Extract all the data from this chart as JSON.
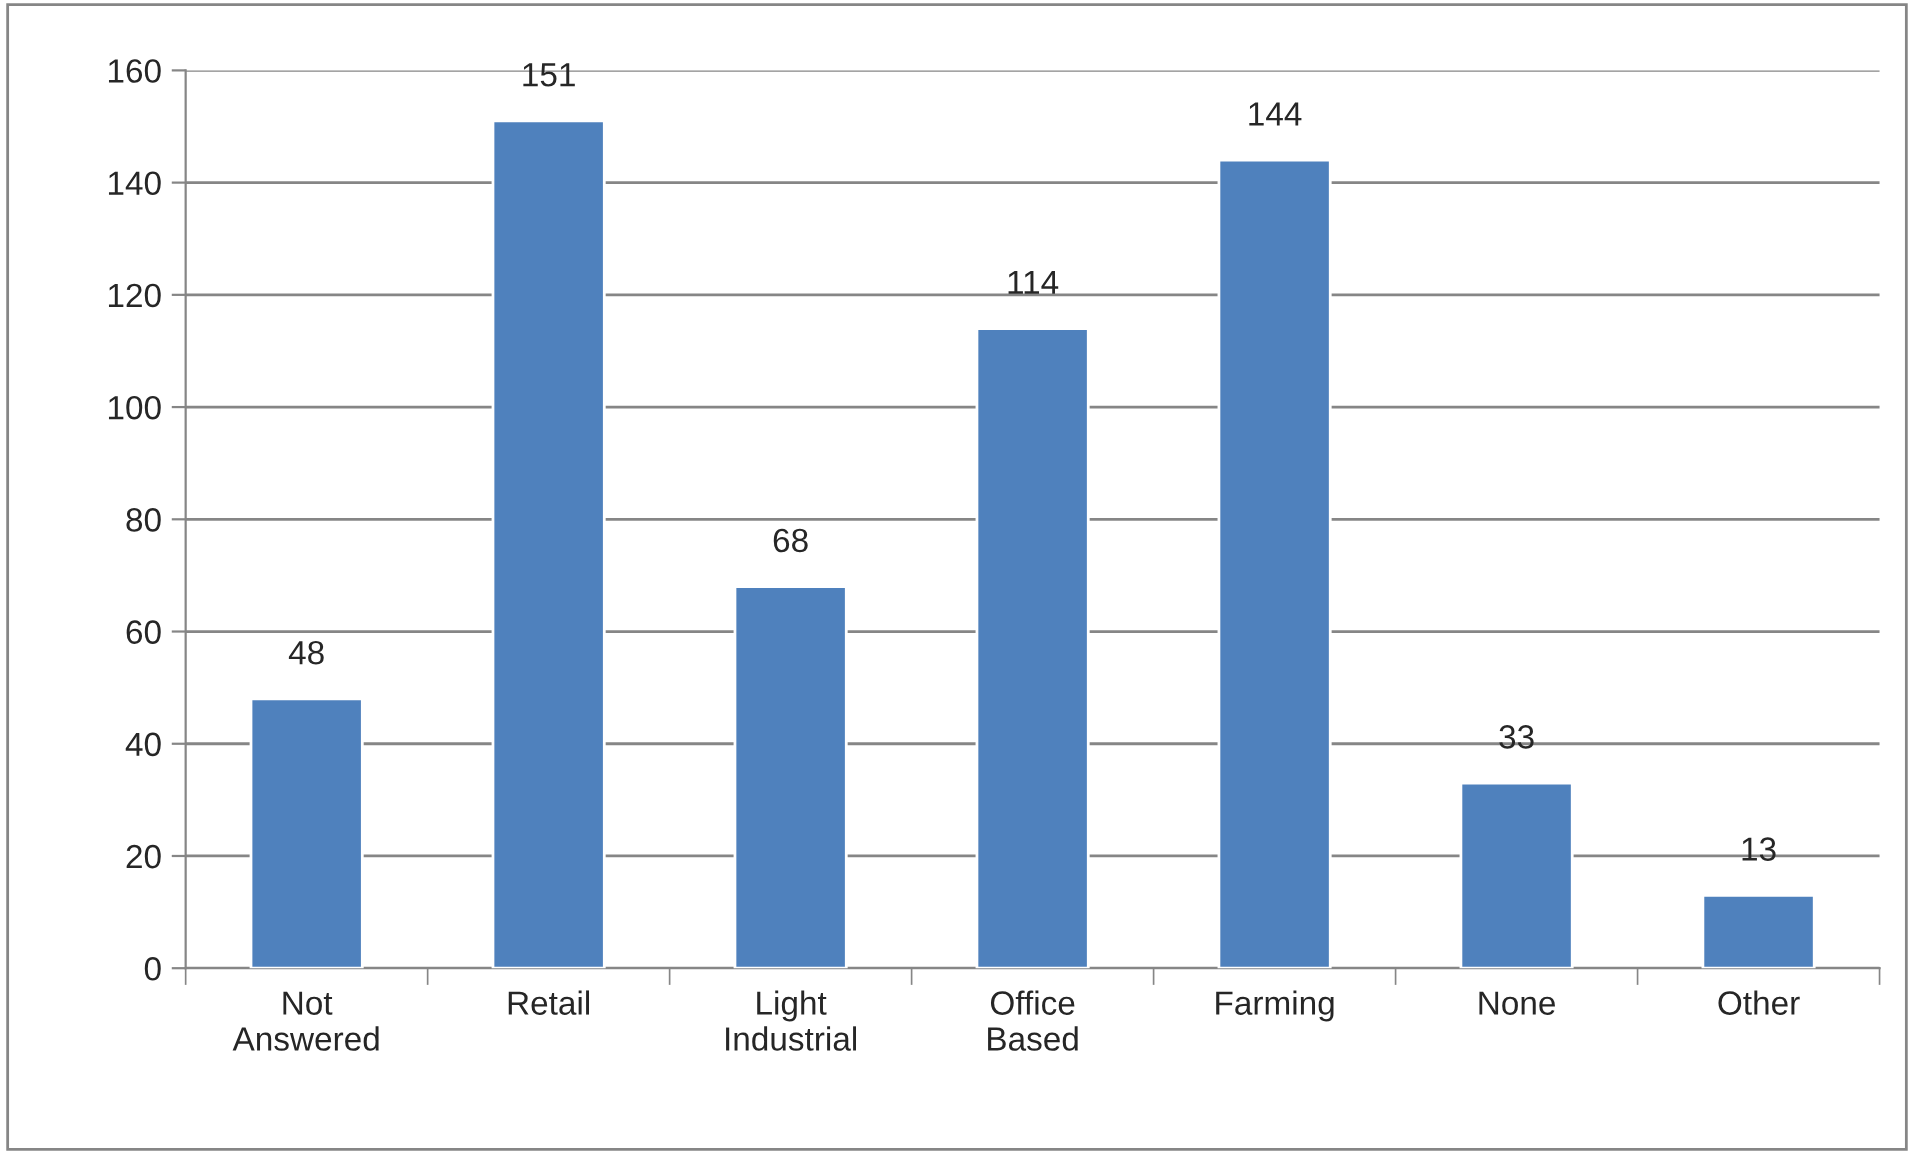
{
  "chart_data": {
    "type": "bar",
    "categories": [
      "Not Answered",
      "Retail",
      "Light Industrial",
      "Office Based",
      "Farming",
      "None",
      "Other"
    ],
    "values": [
      48,
      151,
      68,
      114,
      144,
      33,
      13
    ],
    "color": "#4f81bd",
    "ylim": [
      0,
      160
    ],
    "yticks": [
      0,
      20,
      40,
      60,
      80,
      100,
      120,
      140,
      160
    ],
    "grid": "y",
    "data_labels": true
  }
}
